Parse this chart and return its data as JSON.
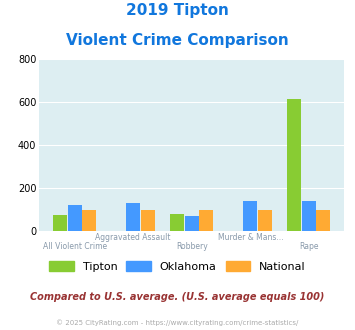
{
  "title_line1": "2019 Tipton",
  "title_line2": "Violent Crime Comparison",
  "categories": [
    "All Violent Crime",
    "Aggravated Assault",
    "Robbery",
    "Murder & Mans...",
    "Rape"
  ],
  "tipton": [
    75,
    0,
    80,
    0,
    615
  ],
  "oklahoma": [
    120,
    130,
    72,
    138,
    138
  ],
  "national": [
    100,
    100,
    100,
    100,
    100
  ],
  "tipton_color": "#88cc33",
  "oklahoma_color": "#4499ff",
  "national_color": "#ffaa33",
  "bg_color": "#ddeef2",
  "ylim": [
    0,
    800
  ],
  "yticks": [
    0,
    200,
    400,
    600,
    800
  ],
  "label_top": [
    "",
    "Aggravated Assault",
    "",
    "Murder & Mans...",
    ""
  ],
  "label_bottom": [
    "All Violent Crime",
    "",
    "Robbery",
    "",
    "Rape"
  ],
  "footer_text": "© 2025 CityRating.com - https://www.cityrating.com/crime-statistics/",
  "note_text": "Compared to U.S. average. (U.S. average equals 100)"
}
